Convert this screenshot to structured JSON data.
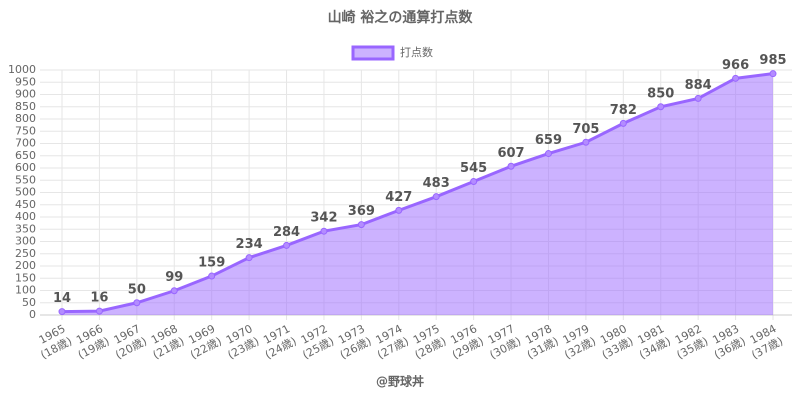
{
  "chart_data": {
    "type": "area",
    "title": "山崎 裕之の通算打点数",
    "source": "@野球丼",
    "categories": [
      [
        "1965",
        "(18歳)"
      ],
      [
        "1966",
        "(19歳)"
      ],
      [
        "1967",
        "(20歳)"
      ],
      [
        "1968",
        "(21歳)"
      ],
      [
        "1969",
        "(22歳)"
      ],
      [
        "1970",
        "(23歳)"
      ],
      [
        "1971",
        "(24歳)"
      ],
      [
        "1972",
        "(25歳)"
      ],
      [
        "1973",
        "(26歳)"
      ],
      [
        "1974",
        "(27歳)"
      ],
      [
        "1975",
        "(28歳)"
      ],
      [
        "1976",
        "(29歳)"
      ],
      [
        "1977",
        "(30歳)"
      ],
      [
        "1978",
        "(31歳)"
      ],
      [
        "1979",
        "(32歳)"
      ],
      [
        "1980",
        "(33歳)"
      ],
      [
        "1981",
        "(34歳)"
      ],
      [
        "1982",
        "(35歳)"
      ],
      [
        "1983",
        "(36歳)"
      ],
      [
        "1984",
        "(37歳)"
      ]
    ],
    "series": [
      {
        "name": "打点数",
        "color": "#9966ff",
        "values": [
          14,
          16,
          50,
          99,
          159,
          234,
          284,
          342,
          369,
          427,
          483,
          545,
          607,
          659,
          705,
          782,
          850,
          884,
          966,
          985
        ]
      }
    ],
    "ylim": [
      0,
      1000
    ],
    "yticks": [
      0,
      50,
      100,
      150,
      200,
      250,
      300,
      350,
      400,
      450,
      500,
      550,
      600,
      650,
      700,
      750,
      800,
      850,
      900,
      950,
      1000
    ],
    "grid": true,
    "legend": "top"
  }
}
